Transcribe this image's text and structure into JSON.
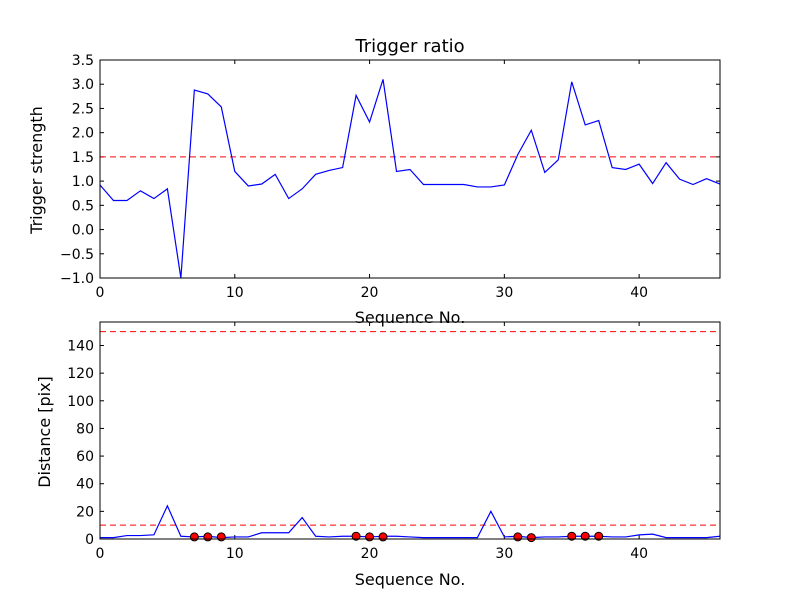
{
  "chart_data": [
    {
      "type": "line",
      "title": "Trigger ratio",
      "xlabel": "Sequence No.",
      "ylabel": "Trigger strength",
      "xlim": [
        0,
        46
      ],
      "ylim": [
        -1.0,
        3.5
      ],
      "xticks": [
        "0",
        "10",
        "20",
        "30",
        "40"
      ],
      "yticks": [
        "−1.0",
        "−0.5",
        "0.0",
        "0.5",
        "1.0",
        "1.5",
        "2.0",
        "2.5",
        "3.0",
        "3.5"
      ],
      "grid": false,
      "series": [
        {
          "color": "#0000ff",
          "x": [
            0,
            1,
            2,
            3,
            4,
            5,
            6,
            7,
            8,
            9,
            10,
            11,
            12,
            13,
            14,
            15,
            16,
            17,
            18,
            19,
            20,
            21,
            22,
            23,
            24,
            25,
            26,
            27,
            28,
            29,
            30,
            31,
            32,
            33,
            34,
            35,
            36,
            37,
            38,
            39,
            40,
            41,
            42,
            43,
            44,
            45,
            46
          ],
          "y": [
            0.92,
            0.6,
            0.6,
            0.8,
            0.64,
            0.84,
            -1.0,
            2.88,
            2.8,
            2.53,
            1.2,
            0.9,
            0.94,
            1.14,
            0.64,
            0.84,
            1.14,
            1.22,
            1.28,
            2.77,
            2.22,
            3.1,
            1.2,
            1.24,
            0.93,
            0.93,
            0.93,
            0.93,
            0.88,
            0.88,
            0.92,
            1.55,
            2.05,
            1.18,
            1.44,
            3.05,
            2.16,
            2.25,
            1.28,
            1.24,
            1.35,
            0.95,
            1.38,
            1.04,
            0.93,
            1.05,
            0.94
          ]
        }
      ],
      "thresholds": [
        {
          "value": 1.5,
          "color": "#ff0000",
          "style": "dashed"
        }
      ]
    },
    {
      "type": "line",
      "title": "",
      "xlabel": "Sequence No.",
      "ylabel": "Distance [pix]",
      "xlim": [
        0,
        46
      ],
      "ylim": [
        0,
        157
      ],
      "xticks": [
        "0",
        "10",
        "20",
        "30",
        "40"
      ],
      "yticks": [
        "0",
        "20",
        "40",
        "60",
        "80",
        "100",
        "120",
        "140"
      ],
      "grid": false,
      "series": [
        {
          "color": "#0000ff",
          "x": [
            0,
            1,
            2,
            3,
            4,
            5,
            6,
            7,
            8,
            9,
            10,
            11,
            12,
            13,
            14,
            15,
            16,
            17,
            18,
            19,
            20,
            21,
            22,
            23,
            24,
            25,
            26,
            27,
            28,
            29,
            30,
            31,
            32,
            33,
            34,
            35,
            36,
            37,
            38,
            39,
            40,
            41,
            42,
            43,
            44,
            45,
            46
          ],
          "y": [
            1,
            1,
            2.5,
            2.5,
            3,
            24,
            2,
            1.5,
            2,
            1,
            1.5,
            1.5,
            4.5,
            4.5,
            4.5,
            15.5,
            2,
            1.5,
            2,
            2,
            1.5,
            2,
            2,
            1.5,
            1,
            1,
            1,
            1,
            1,
            20,
            1.5,
            2,
            1,
            1.5,
            1.5,
            2,
            2,
            2,
            1.5,
            1.5,
            3,
            3.5,
            1,
            1,
            1,
            1,
            2
          ]
        }
      ],
      "markers": {
        "color": "#ff0000",
        "x": [
          7,
          8,
          9,
          19,
          20,
          21,
          31,
          32,
          35,
          36,
          37
        ],
        "y": [
          1.5,
          1.5,
          1.5,
          2,
          1.5,
          1.5,
          1.5,
          1,
          2,
          2,
          2
        ]
      },
      "thresholds": [
        {
          "value": 150,
          "color": "#ff0000",
          "style": "dashed"
        },
        {
          "value": 10,
          "color": "#ff0000",
          "style": "dashed"
        }
      ]
    }
  ]
}
